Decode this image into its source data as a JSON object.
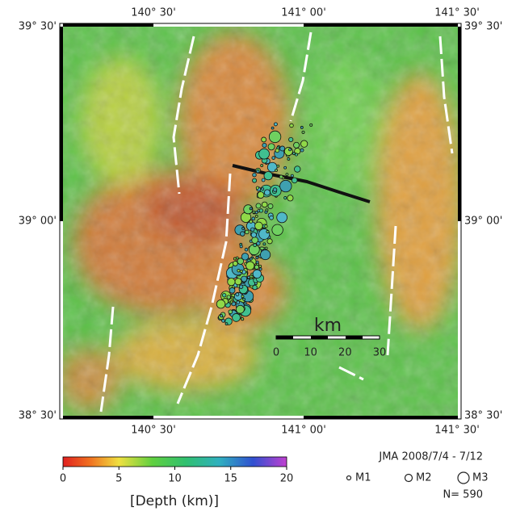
{
  "map": {
    "lon_labels_top": [
      "140° 30'",
      "141° 00'",
      "141° 30'"
    ],
    "lon_labels_bottom": [
      "140° 30'",
      "141° 00'",
      "141° 30'"
    ],
    "lat_labels_left": [
      "39° 30'",
      "39° 00'",
      "38° 30'"
    ],
    "lat_labels_right": [
      "39° 30'",
      "39° 00'",
      "38° 30'"
    ]
  },
  "scale_bar": {
    "unit": "km",
    "ticks": [
      "0",
      "10",
      "20",
      "30"
    ]
  },
  "colorbar": {
    "ticks": [
      0,
      5,
      10,
      15,
      20
    ],
    "label": "[Depth (km)]"
  },
  "legend": {
    "source": "JMA  2008/7/4 - 7/12",
    "sizes": [
      "M1",
      "M2",
      "M3"
    ],
    "count": "N= 590"
  }
}
